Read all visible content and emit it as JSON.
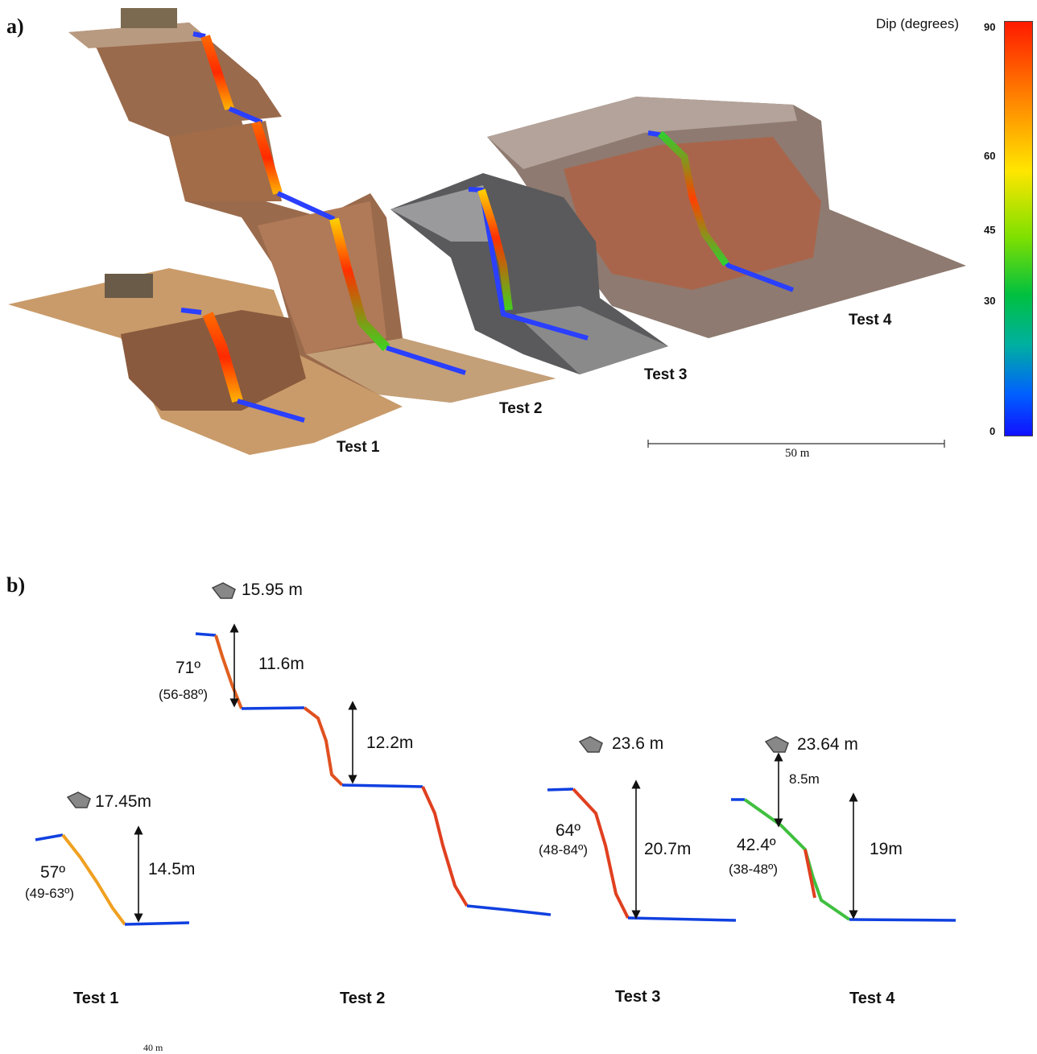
{
  "panel_a": {
    "label": "a)",
    "colorbar": {
      "title": "Dip (degrees)",
      "ticks": [
        "90",
        "60",
        "45",
        "30",
        "0"
      ],
      "colors": [
        "#ff1a00",
        "#ff8000",
        "#ffe600",
        "#7fe000",
        "#00c040",
        "#00b0a0",
        "#0060ff",
        "#1010ff"
      ]
    },
    "tests": [
      "Test 1",
      "Test 2",
      "Test 3",
      "Test 4"
    ],
    "scale_label": "50 m"
  },
  "panel_b": {
    "label": "b)",
    "tests": [
      "Test 1",
      "Test 2",
      "Test 3",
      "Test 4"
    ],
    "test1": {
      "distance": "17.45m",
      "angle": "57º",
      "range": "(49-63º)",
      "height": "14.5m"
    },
    "test2": {
      "distance": "15.95 m",
      "angle": "71º",
      "range": "(56-88º)",
      "height_upper": "11.6m",
      "height_lower": "12.2m"
    },
    "test3": {
      "distance": "23.6 m",
      "angle": "64º",
      "range": "(48-84º)",
      "height": "20.7m"
    },
    "test4": {
      "distance": "23.64 m",
      "offset": "8.5m",
      "angle": "42.4º",
      "range": "(38-48º)",
      "height": "19m"
    },
    "scale_label": "40 m"
  }
}
